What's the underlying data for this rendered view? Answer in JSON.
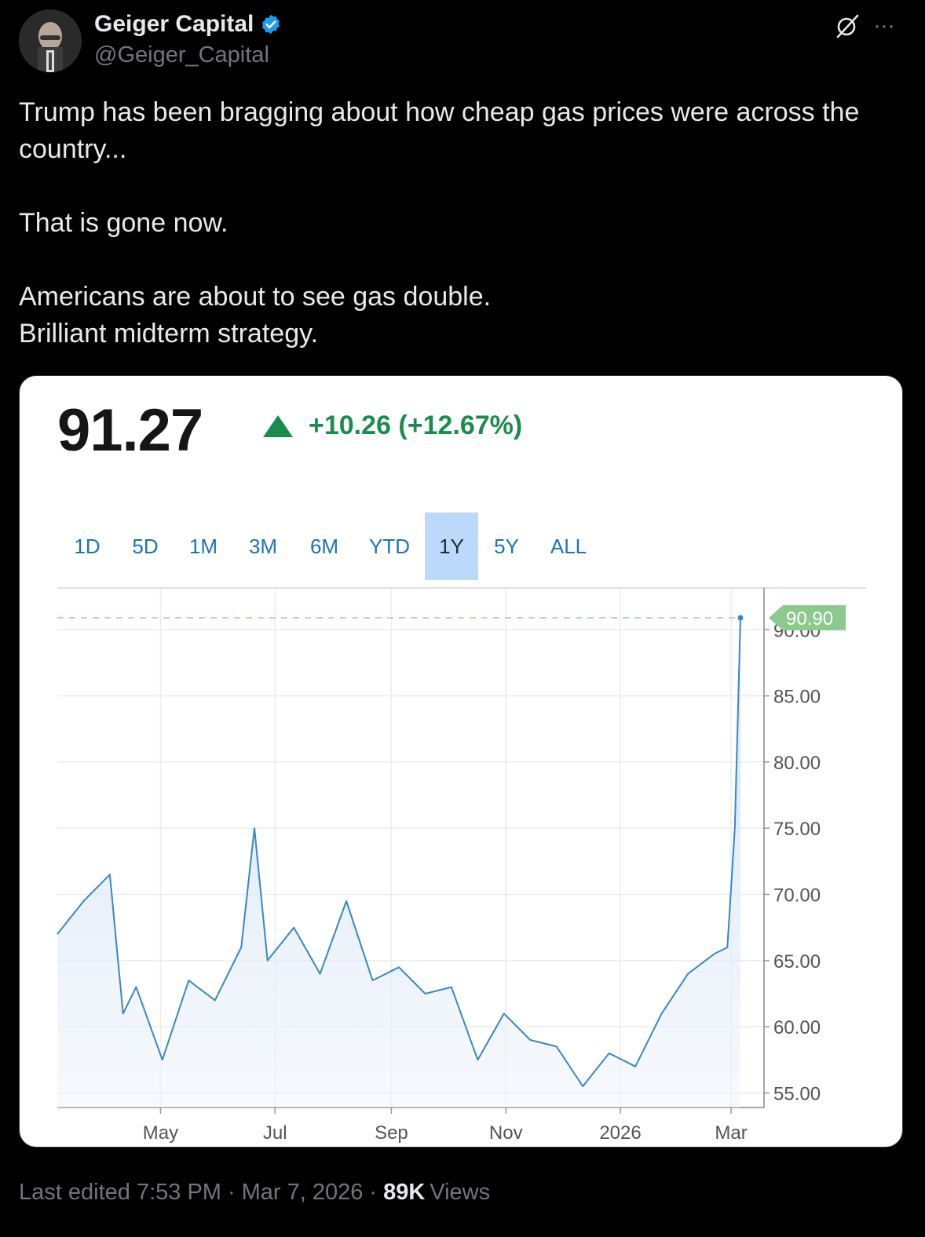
{
  "tweet": {
    "author_name": "Geiger Capital",
    "handle": "@Geiger_Capital",
    "lines": [
      "Trump has been bragging about how cheap gas prices were across the country...",
      "",
      "That is gone now.",
      "",
      "Americans are about to see gas double.",
      "Brilliant midterm strategy."
    ],
    "footer": {
      "edited": "Last edited 7:53 PM",
      "date": "Mar 7, 2026",
      "views_count": "89K",
      "views_label": "Views",
      "separator": "·"
    },
    "icons": {
      "verified": "verified-badge-icon",
      "grok": "grok-icon",
      "more": "more-options-icon"
    }
  },
  "quote": {
    "price": "91.27",
    "change": "+10.26 (+12.67%)",
    "change_color": "#1b8c4e",
    "tabs": [
      "1D",
      "5D",
      "1M",
      "3M",
      "6M",
      "YTD",
      "1Y",
      "5Y",
      "ALL"
    ],
    "active_tab": "1Y"
  },
  "chart_data": {
    "type": "area",
    "title": "",
    "xlabel": "",
    "ylabel": "",
    "x_tick_labels": [
      "May",
      "Jul",
      "Sep",
      "Nov",
      "2026",
      "Mar"
    ],
    "y_tick_labels": [
      "55.00",
      "60.00",
      "65.00",
      "70.00",
      "75.00",
      "80.00",
      "85.00",
      "90.00"
    ],
    "ylim": [
      53.9,
      91.5
    ],
    "last_value_label": "90.90",
    "line_color": "#3a87c5",
    "grid": true,
    "x_dates": [
      "2025-03-07",
      "2025-03-21",
      "2025-04-04",
      "2025-04-11",
      "2025-04-18",
      "2025-05-02",
      "2025-05-16",
      "2025-05-30",
      "2025-06-13",
      "2025-06-20",
      "2025-06-27",
      "2025-07-11",
      "2025-07-25",
      "2025-08-08",
      "2025-08-22",
      "2025-09-05",
      "2025-09-19",
      "2025-10-03",
      "2025-10-17",
      "2025-10-31",
      "2025-11-14",
      "2025-11-28",
      "2025-12-12",
      "2025-12-26",
      "2026-01-09",
      "2026-01-23",
      "2026-02-06",
      "2026-02-20",
      "2026-02-27",
      "2026-03-03",
      "2026-03-06"
    ],
    "y_values": [
      67.0,
      69.5,
      71.5,
      61.0,
      63.0,
      57.5,
      63.5,
      62.0,
      66.0,
      75.0,
      65.0,
      67.5,
      64.0,
      69.5,
      63.5,
      64.5,
      62.5,
      63.0,
      57.5,
      61.0,
      59.0,
      58.5,
      55.5,
      58.0,
      57.0,
      61.0,
      64.0,
      65.5,
      66.0,
      75.0,
      90.9
    ]
  }
}
